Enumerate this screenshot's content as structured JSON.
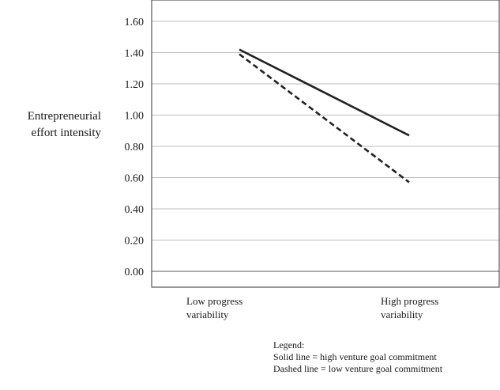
{
  "chart_data": {
    "type": "line",
    "ylabel": [
      "Entrepreneurial",
      "effort intensity"
    ],
    "xlabel": "",
    "categories": [
      [
        "Low progress",
        "variability"
      ],
      [
        "High progress",
        "variability"
      ]
    ],
    "yticks": [
      "0.00",
      "0.20",
      "0.40",
      "0.60",
      "0.80",
      "1.00",
      "1.20",
      "1.40",
      "1.60"
    ],
    "ylim": [
      0,
      1.6
    ],
    "grid": true,
    "series": [
      {
        "style": "solid",
        "color": "#222222",
        "values": [
          1.42,
          0.87
        ]
      },
      {
        "style": "dashed",
        "color": "#222222",
        "values": [
          1.39,
          0.57
        ]
      }
    ],
    "legend": {
      "title": "Legend:",
      "entries": [
        "Solid line = high venture goal commitment",
        "Dashed line = low venture goal commitment"
      ]
    }
  }
}
